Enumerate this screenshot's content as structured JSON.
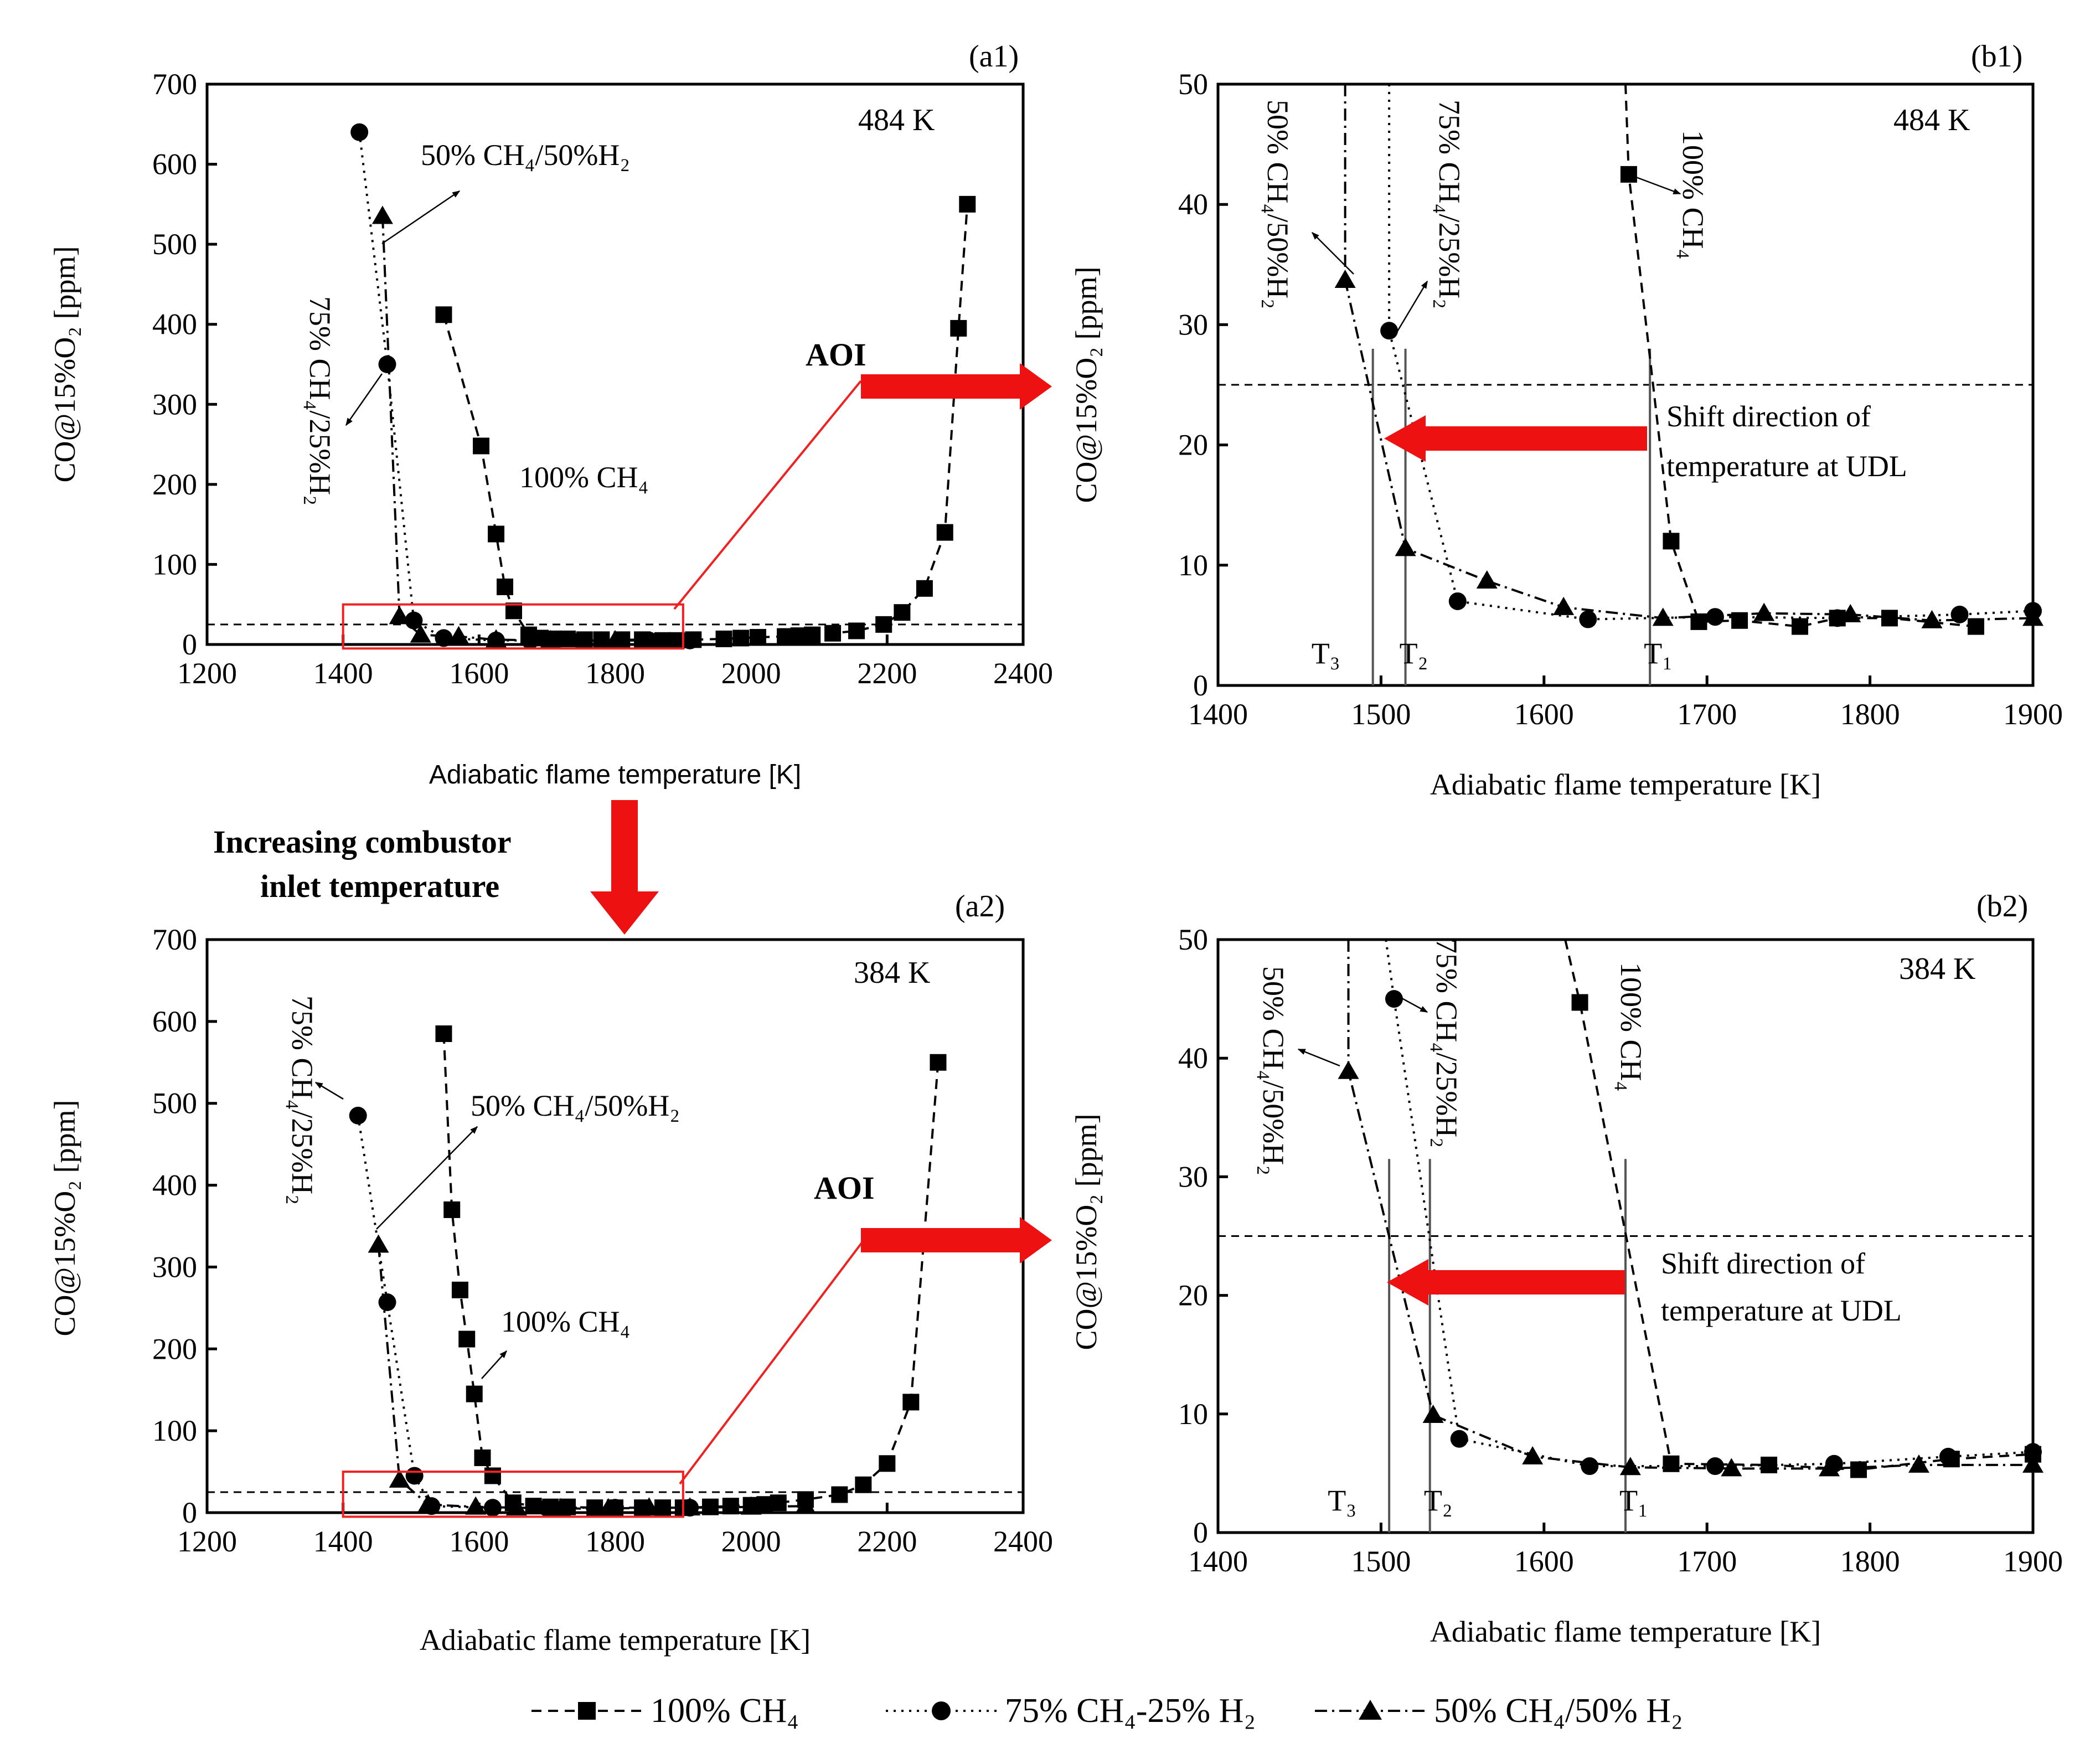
{
  "chart_data": [
    {
      "id": "a1",
      "type": "scatter",
      "panel_label": "(a1)",
      "condition_label": "484 K",
      "xlabel": "Adiabatic flame temperature [K]",
      "ylabel": "CO@15%O₂ [ppm]",
      "xlim": [
        1200,
        2400
      ],
      "ylim": [
        0,
        700
      ],
      "xticks": [
        1200,
        1400,
        1600,
        1800,
        2000,
        2200,
        2400
      ],
      "yticks": [
        0,
        100,
        200,
        300,
        400,
        500,
        600,
        700
      ],
      "udl": 25,
      "aoi": {
        "label": "AOI",
        "x_range": [
          1400,
          1900
        ],
        "y_range": [
          -5,
          50
        ]
      },
      "series": [
        {
          "key": "s1",
          "name": "100% CH₄",
          "marker": "square",
          "x": [
            1548,
            1603,
            1625,
            1638,
            1651,
            1673,
            1690,
            1710,
            1730,
            1755,
            1780,
            1810,
            1840,
            1870,
            1890,
            1915,
            1960,
            1985,
            2010,
            2050,
            2070,
            2090,
            2120,
            2155,
            2195,
            2222,
            2255,
            2285,
            2305,
            2318
          ],
          "y": [
            412,
            248,
            138,
            72,
            42,
            12,
            8,
            7,
            7,
            6,
            6,
            6,
            6,
            5,
            5,
            6,
            7,
            8,
            9,
            10,
            11,
            12,
            14,
            17,
            25,
            40,
            70,
            140,
            395,
            550
          ]
        },
        {
          "key": "s2",
          "name": "75% CH₄-25% H₂",
          "marker": "circle",
          "x": [
            1424,
            1465,
            1504,
            1548,
            1625,
            1675,
            1750,
            1850,
            1910
          ],
          "y": [
            640,
            350,
            30,
            8,
            5,
            5,
            5,
            5,
            5
          ]
        },
        {
          "key": "s3",
          "name": "50% CH₄/50% H₂",
          "marker": "triangle",
          "x": [
            1458,
            1483,
            1514,
            1570,
            1625,
            1705,
            1800,
            1900
          ],
          "y": [
            535,
            35,
            12,
            10,
            6,
            5,
            5,
            5
          ]
        }
      ],
      "annotations": [
        {
          "text": "50% CH₄/50%H₂"
        },
        {
          "text": "75% CH₄/25%H₂"
        },
        {
          "text": "100% CH₄"
        }
      ]
    },
    {
      "id": "b1",
      "type": "scatter",
      "panel_label": "(b1)",
      "condition_label": "484 K",
      "xlabel": "Adiabatic flame temperature [K]",
      "ylabel": "CO@15%O₂ [ppm]",
      "xlim": [
        1400,
        1900
      ],
      "ylim": [
        0,
        50
      ],
      "xticks": [
        1400,
        1500,
        1600,
        1700,
        1800,
        1900
      ],
      "yticks": [
        0,
        10,
        20,
        30,
        40,
        50
      ],
      "udl": 25,
      "temperature_marks": [
        {
          "label": "T₃",
          "x": 1495
        },
        {
          "label": "T₂",
          "x": 1515
        },
        {
          "label": "T₁",
          "x": 1665
        }
      ],
      "shift_text": [
        "Shift direction of",
        "temperature at UDL"
      ],
      "series": [
        {
          "key": "s1",
          "name": "100% CH₄",
          "marker": "square",
          "x": [
            1650,
            1652,
            1678,
            1695,
            1720,
            1757,
            1780,
            1812,
            1865
          ],
          "y": [
            50,
            42.5,
            12,
            5.3,
            5.4,
            4.9,
            5.6,
            5.6,
            4.9
          ]
        },
        {
          "key": "s2",
          "name": "75% CH₄-25% H₂",
          "marker": "circle",
          "x": [
            1505,
            1505,
            1547,
            1627,
            1705,
            1780,
            1855,
            1900
          ],
          "y": [
            50,
            29.5,
            7,
            5.5,
            5.7,
            5.6,
            5.9,
            6.2
          ]
        },
        {
          "key": "s3",
          "name": "50% CH₄/50% H₂",
          "marker": "triangle",
          "x": [
            1478,
            1478,
            1515,
            1565,
            1612,
            1673,
            1735,
            1788,
            1838,
            1900
          ],
          "y": [
            50,
            33.7,
            11.4,
            8.7,
            6.5,
            5.6,
            6,
            5.9,
            5.4,
            5.6
          ]
        }
      ],
      "annotations": [
        {
          "text": "50% CH₄/50%H₂"
        },
        {
          "text": "75% CH₄/25%H₂"
        },
        {
          "text": "100% CH₄"
        }
      ]
    },
    {
      "id": "a2",
      "type": "scatter",
      "panel_label": "(a2)",
      "condition_label": "384 K",
      "xlabel": "Adiabatic flame temperature [K]",
      "ylabel": "CO@15%O₂ [ppm]",
      "xlim": [
        1200,
        2400
      ],
      "ylim": [
        0,
        700
      ],
      "xticks": [
        1200,
        1400,
        1600,
        1800,
        2000,
        2200,
        2400
      ],
      "yticks": [
        0,
        100,
        200,
        300,
        400,
        500,
        600,
        700
      ],
      "udl": 25,
      "aoi": {
        "label": "AOI",
        "x_range": [
          1400,
          1900
        ],
        "y_range": [
          -5,
          50
        ]
      },
      "series": [
        {
          "key": "s1",
          "name": "100% CH₄",
          "marker": "square",
          "x": [
            1548,
            1560,
            1572,
            1582,
            1593,
            1605,
            1620,
            1650,
            1680,
            1705,
            1730,
            1770,
            1800,
            1840,
            1870,
            1900,
            1940,
            1970,
            2000,
            2020,
            2040,
            2080,
            2130,
            2165,
            2200,
            2235,
            2275
          ],
          "y": [
            585,
            370,
            272,
            212,
            145,
            67,
            45,
            12,
            8,
            7,
            7,
            6,
            6,
            6,
            6,
            6,
            7,
            8,
            9,
            10,
            12,
            16,
            22,
            34,
            60,
            135,
            550
          ]
        },
        {
          "key": "s2",
          "name": "75% CH₄-25% H₂",
          "marker": "circle",
          "x": [
            1422,
            1465,
            1505,
            1530,
            1620,
            1700,
            1800,
            1910
          ],
          "y": [
            485,
            257,
            45,
            8,
            6,
            6,
            6,
            6
          ]
        },
        {
          "key": "s3",
          "name": "50% CH₄/50% H₂",
          "marker": "triangle",
          "x": [
            1452,
            1483,
            1525,
            1595,
            1655,
            1720,
            1790,
            1850,
            1910,
            2000,
            2080
          ],
          "y": [
            327,
            40,
            10,
            7,
            6,
            5,
            5,
            6,
            6,
            7,
            8
          ]
        }
      ],
      "annotations": [
        {
          "text": "75% CH₄/25%H₂"
        },
        {
          "text": "50% CH₄/50%H₂"
        },
        {
          "text": "100% CH₄"
        }
      ]
    },
    {
      "id": "b2",
      "type": "scatter",
      "panel_label": "(b2)",
      "condition_label": "384 K",
      "xlabel": "Adiabatic flame temperature [K]",
      "ylabel": "CO@15%O₂ [ppm]",
      "xlim": [
        1400,
        1900
      ],
      "ylim": [
        0,
        50
      ],
      "xticks": [
        1400,
        1500,
        1600,
        1700,
        1800,
        1900
      ],
      "yticks": [
        0,
        10,
        20,
        30,
        40,
        50
      ],
      "udl": 25,
      "temperature_marks": [
        {
          "label": "T₃",
          "x": 1505
        },
        {
          "label": "T₂",
          "x": 1530
        },
        {
          "label": "T₁",
          "x": 1650
        }
      ],
      "shift_text": [
        "Shift direction of",
        "temperature at UDL"
      ],
      "series": [
        {
          "key": "s1",
          "name": "100% CH₄",
          "marker": "square",
          "x": [
            1613,
            1622,
            1678,
            1738,
            1793,
            1850,
            1900
          ],
          "y": [
            50,
            44.7,
            5.8,
            5.7,
            5.3,
            6.2,
            6.6
          ]
        },
        {
          "key": "s2",
          "name": "75% CH₄-25% H₂",
          "marker": "circle",
          "x": [
            1503,
            1508,
            1548,
            1628,
            1705,
            1778,
            1848,
            1900
          ],
          "y": [
            50,
            45,
            7.9,
            5.6,
            5.6,
            5.8,
            6.4,
            6.8
          ]
        },
        {
          "key": "s3",
          "name": "50% CH₄/50% H₂",
          "marker": "triangle",
          "x": [
            1480,
            1480,
            1532,
            1593,
            1653,
            1715,
            1775,
            1830,
            1900
          ],
          "y": [
            50,
            38.9,
            9.9,
            6.4,
            5.5,
            5.4,
            5.4,
            5.7,
            5.7
          ]
        }
      ],
      "annotations": [
        {
          "text": "50% CH₄/50%H₂"
        },
        {
          "text": "75% CH₄/25%H₂"
        },
        {
          "text": "100% CH₄"
        }
      ]
    }
  ],
  "figure_annotations": {
    "increasing_text": [
      "Increasing combustor",
      "inlet temperature"
    ]
  },
  "legend": [
    {
      "key": "s1",
      "label": "100% CH₄"
    },
    {
      "key": "s2",
      "label": "75% CH₄-25% H₂"
    },
    {
      "key": "s3",
      "label": "50% CH₄/50% H₂"
    }
  ],
  "colors": {
    "aoi": "#ee2222",
    "arrow": "#ee1111",
    "ink": "#000000"
  }
}
